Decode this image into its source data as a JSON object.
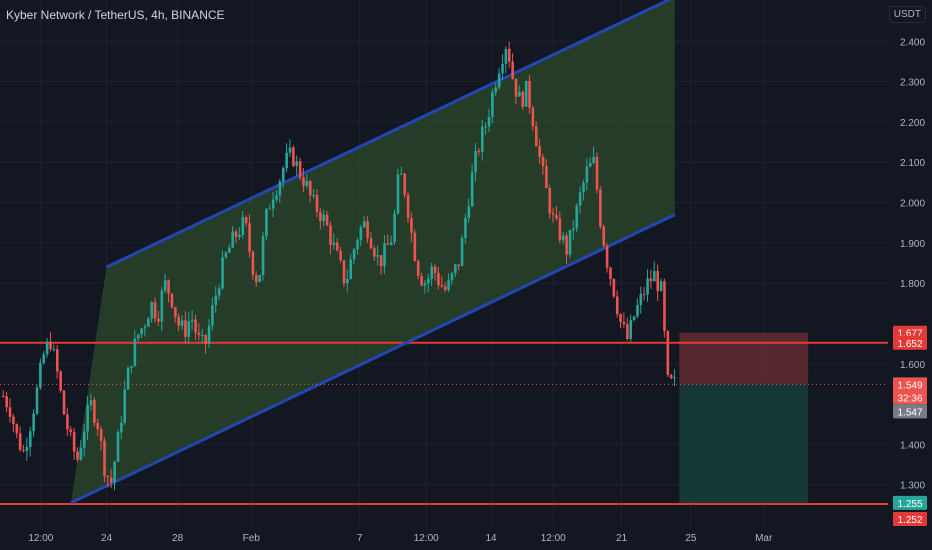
{
  "header": {
    "title": "Kyber Network / TetherUS, 4h, BINANCE",
    "currency": "USDT"
  },
  "colors": {
    "background": "#131722",
    "up": "#26a69a",
    "down": "#ef5350",
    "channel_line": "#2247b3",
    "channel_fill": "#2b4a2b",
    "level_line": "#e53935",
    "stop_zone": "#5c2a30",
    "target_zone": "#163c3a",
    "axis_text": "#b2b5be"
  },
  "chart_data": {
    "type": "candlestick",
    "title": "Kyber Network / TetherUS, 4h, BINANCE",
    "ylabel": "USDT",
    "ylim": [
      1.2,
      2.49
    ],
    "y_ticks": [
      "2.400",
      "2.300",
      "2.200",
      "2.100",
      "2.000",
      "1.900",
      "1.800",
      "1.600",
      "1.400",
      "1.300"
    ],
    "x_ticks": [
      "12:00",
      "24",
      "28",
      "Feb",
      "7",
      "12:00",
      "14",
      "12:00",
      "21",
      "25",
      "Mar"
    ],
    "price_tags": [
      {
        "label": "1.677",
        "kind": "stop"
      },
      {
        "label": "1.652",
        "kind": "level"
      },
      {
        "label": "1.549",
        "kind": "last"
      },
      {
        "label": "32:36",
        "kind": "countdown"
      },
      {
        "label": "1.547",
        "kind": "gray"
      },
      {
        "label": "1.255",
        "kind": "target"
      },
      {
        "label": "1.252",
        "kind": "level"
      }
    ],
    "horizontal_levels": [
      1.652,
      1.252
    ],
    "channel": {
      "upper": {
        "from": [
          0.12,
          1.84
        ],
        "to": [
          0.76,
          2.51
        ]
      },
      "lower": {
        "from": [
          0.08,
          1.255
        ],
        "to": [
          0.76,
          1.97
        ]
      }
    },
    "position": {
      "entry": 1.549,
      "stop": 1.677,
      "target": 1.255
    },
    "price_path": [
      1.52,
      1.49,
      1.42,
      1.38,
      1.45,
      1.53,
      1.62,
      1.66,
      1.58,
      1.48,
      1.41,
      1.36,
      1.44,
      1.5,
      1.46,
      1.35,
      1.3,
      1.4,
      1.52,
      1.61,
      1.67,
      1.7,
      1.75,
      1.72,
      1.8,
      1.77,
      1.7,
      1.68,
      1.72,
      1.66,
      1.64,
      1.72,
      1.8,
      1.86,
      1.9,
      1.93,
      1.95,
      1.85,
      1.8,
      1.95,
      2.02,
      2.05,
      2.1,
      2.12,
      2.08,
      2.05,
      2.0,
      1.98,
      1.95,
      1.9,
      1.85,
      1.8,
      1.87,
      1.93,
      1.95,
      1.9,
      1.85,
      1.88,
      1.92,
      2.08,
      2.02,
      1.9,
      1.82,
      1.8,
      1.84,
      1.8,
      1.78,
      1.82,
      1.86,
      1.98,
      2.08,
      2.15,
      2.2,
      2.28,
      2.35,
      2.4,
      2.3,
      2.25,
      2.28,
      2.2,
      2.1,
      2.02,
      1.95,
      1.92,
      1.88,
      1.95,
      2.02,
      2.08,
      2.1,
      1.95,
      1.85,
      1.78,
      1.7,
      1.66,
      1.72,
      1.76,
      1.8,
      1.82,
      1.78,
      1.55,
      1.549
    ]
  }
}
